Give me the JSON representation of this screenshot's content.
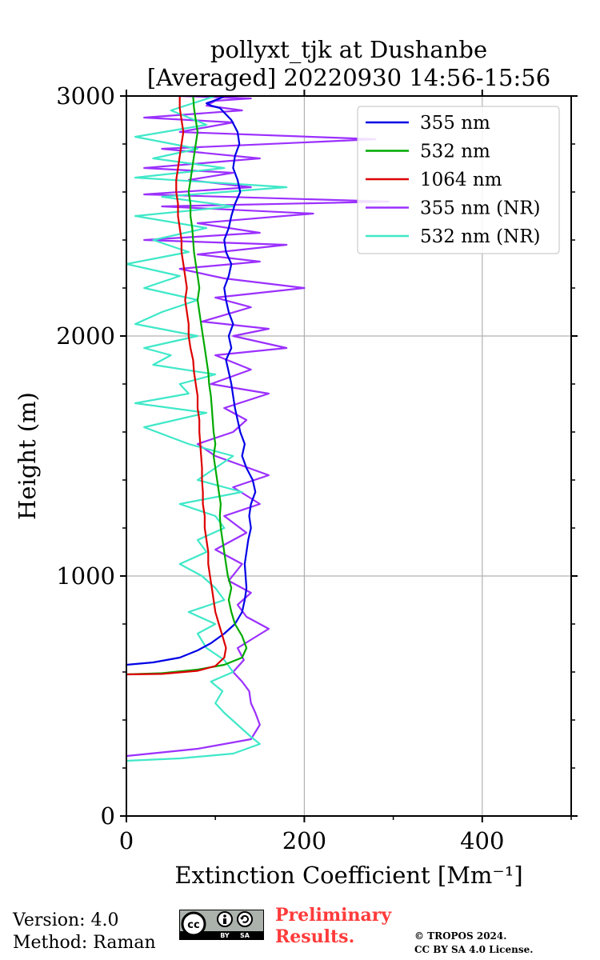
{
  "chart_data": {
    "type": "line",
    "title_line1": "pollyxt_tjk at Dushanbe",
    "title_line2": "[Averaged] 20220930 14:56-15:56",
    "xlabel": "Extinction Coefficient [Mm⁻¹]",
    "ylabel": "Height (m)",
    "xlim": [
      0,
      500
    ],
    "ylim": [
      0,
      3000
    ],
    "xticks": [
      0,
      200,
      400
    ],
    "yticks": [
      0,
      1000,
      2000,
      3000
    ],
    "grid": true,
    "legend_position": "top-right",
    "series": [
      {
        "name": "355 nm",
        "color": "#0000e6",
        "x": [
          0,
          30,
          60,
          80,
          95,
          110,
          122,
          130,
          133,
          135,
          134,
          133,
          135,
          137,
          140,
          138,
          140,
          145,
          142,
          135,
          130,
          133,
          128,
          125,
          122,
          120,
          118,
          115,
          112,
          118,
          115,
          120,
          115,
          112,
          110,
          115,
          118,
          112,
          110,
          115,
          118,
          122,
          128,
          125,
          120,
          122,
          127,
          125,
          118,
          105,
          95,
          90,
          98,
          105,
          110,
          115,
          120,
          125
        ],
        "y": [
          630,
          640,
          660,
          690,
          720,
          760,
          800,
          850,
          900,
          950,
          1000,
          1050,
          1100,
          1150,
          1200,
          1250,
          1300,
          1350,
          1400,
          1450,
          1500,
          1550,
          1600,
          1650,
          1700,
          1750,
          1800,
          1850,
          1900,
          1950,
          2000,
          2050,
          2100,
          2150,
          2200,
          2250,
          2300,
          2350,
          2400,
          2450,
          2500,
          2550,
          2600,
          2650,
          2700,
          2750,
          2800,
          2850,
          2900,
          2950,
          2960,
          2970,
          2980,
          2990,
          3000,
          3000,
          3000,
          3000
        ]
      },
      {
        "name": "532 nm",
        "color": "#00aa00",
        "x": [
          0,
          40,
          80,
          110,
          130,
          135,
          130,
          122,
          118,
          115,
          118,
          114,
          112,
          110,
          108,
          106,
          105,
          106,
          104,
          102,
          100,
          98,
          100,
          98,
          97,
          96,
          95,
          93,
          92,
          90,
          88,
          86,
          84,
          82,
          80,
          82,
          80,
          78,
          76,
          75,
          74,
          72,
          72,
          70,
          72,
          74,
          76,
          78,
          80,
          78,
          76,
          75
        ],
        "y": [
          590,
          595,
          610,
          630,
          660,
          700,
          750,
          800,
          850,
          900,
          950,
          1000,
          1050,
          1100,
          1150,
          1200,
          1250,
          1300,
          1350,
          1400,
          1450,
          1500,
          1550,
          1600,
          1650,
          1700,
          1750,
          1800,
          1850,
          1900,
          1950,
          2000,
          2050,
          2100,
          2150,
          2200,
          2250,
          2300,
          2350,
          2400,
          2450,
          2500,
          2550,
          2600,
          2650,
          2700,
          2750,
          2800,
          2850,
          2900,
          2950,
          3000
        ]
      },
      {
        "name": "1064 nm",
        "color": "#dd0000",
        "x": [
          0,
          40,
          80,
          100,
          110,
          112,
          108,
          104,
          100,
          98,
          96,
          94,
          92,
          92,
          90,
          88,
          88,
          86,
          86,
          85,
          85,
          84,
          83,
          82,
          82,
          80,
          80,
          78,
          76,
          75,
          72,
          70,
          70,
          68,
          66,
          68,
          66,
          64,
          62,
          62,
          60,
          58,
          58,
          56,
          56,
          58,
          60,
          62,
          64,
          62,
          60,
          60
        ],
        "y": [
          590,
          592,
          605,
          625,
          660,
          700,
          750,
          800,
          850,
          900,
          950,
          1000,
          1050,
          1100,
          1150,
          1200,
          1250,
          1300,
          1350,
          1400,
          1450,
          1500,
          1550,
          1600,
          1650,
          1700,
          1750,
          1800,
          1850,
          1900,
          1950,
          2000,
          2050,
          2100,
          2150,
          2200,
          2250,
          2300,
          2350,
          2400,
          2450,
          2500,
          2550,
          2600,
          2650,
          2700,
          2750,
          2800,
          2850,
          2900,
          2950,
          3000
        ]
      },
      {
        "name": "355 nm (NR)",
        "color": "#9b30ff",
        "x": [
          0,
          80,
          140,
          150,
          145,
          140,
          138,
          130,
          120,
          132,
          125,
          160,
          135,
          125,
          140,
          115,
          130,
          100,
          135,
          110,
          150,
          120,
          160,
          130,
          100,
          80,
          120,
          135,
          110,
          160,
          95,
          140,
          100,
          180,
          120,
          160,
          85,
          140,
          100,
          200,
          110,
          60,
          150,
          80,
          180,
          20,
          150,
          80,
          210,
          40,
          295,
          20,
          140,
          70,
          120,
          20,
          150,
          40,
          280,
          60,
          120,
          20,
          130,
          90,
          100,
          140,
          60,
          100
        ],
        "y": [
          250,
          280,
          320,
          380,
          430,
          470,
          520,
          560,
          600,
          650,
          700,
          780,
          830,
          880,
          930,
          980,
          1050,
          1110,
          1180,
          1250,
          1300,
          1370,
          1420,
          1460,
          1500,
          1550,
          1600,
          1650,
          1700,
          1760,
          1800,
          1860,
          1920,
          1950,
          2000,
          2030,
          2060,
          2120,
          2160,
          2200,
          2240,
          2280,
          2310,
          2340,
          2380,
          2400,
          2430,
          2470,
          2510,
          2540,
          2560,
          2590,
          2620,
          2650,
          2680,
          2700,
          2740,
          2780,
          2820,
          2850,
          2890,
          2910,
          2940,
          2960,
          2980,
          2990,
          3000,
          3000
        ]
      },
      {
        "name": "532 nm (NR)",
        "color": "#40e8c8",
        "x": [
          0,
          60,
          120,
          150,
          140,
          125,
          110,
          100,
          108,
          95,
          120,
          110,
          90,
          80,
          100,
          70,
          110,
          100,
          85,
          60,
          90,
          80,
          110,
          100,
          60,
          130,
          80,
          100,
          120,
          70,
          20,
          90,
          10,
          70,
          60,
          100,
          30,
          50,
          20,
          80,
          10,
          40,
          80,
          20,
          60,
          0,
          70,
          30,
          90,
          10,
          120,
          40,
          180,
          10,
          110,
          30,
          80,
          10,
          90,
          50,
          100
        ],
        "y": [
          230,
          240,
          260,
          300,
          330,
          380,
          430,
          470,
          520,
          560,
          600,
          650,
          700,
          760,
          800,
          850,
          900,
          950,
          1000,
          1050,
          1100,
          1150,
          1200,
          1250,
          1300,
          1350,
          1400,
          1450,
          1500,
          1550,
          1620,
          1680,
          1720,
          1760,
          1800,
          1840,
          1880,
          1920,
          1950,
          2000,
          2050,
          2100,
          2150,
          2200,
          2250,
          2300,
          2350,
          2400,
          2450,
          2500,
          2540,
          2580,
          2620,
          2660,
          2700,
          2740,
          2780,
          2830,
          2880,
          2940,
          3000
        ]
      }
    ]
  },
  "footer": {
    "version": "Version: 4.0",
    "method": "Method: Raman",
    "preliminary_line1": "Preliminary",
    "preliminary_line2": "Results.",
    "copyright_line1": "© TROPOS 2024.",
    "copyright_line2": "CC BY SA 4.0 License.",
    "license_badge": {
      "text_left": "BY",
      "text_right": "SA",
      "icons": [
        "cc-icon",
        "attribution-icon",
        "share-alike-icon"
      ],
      "bg_color": "#aab2ab",
      "bar_color": "#000000"
    },
    "preliminary_color": "#ff3b3b"
  }
}
